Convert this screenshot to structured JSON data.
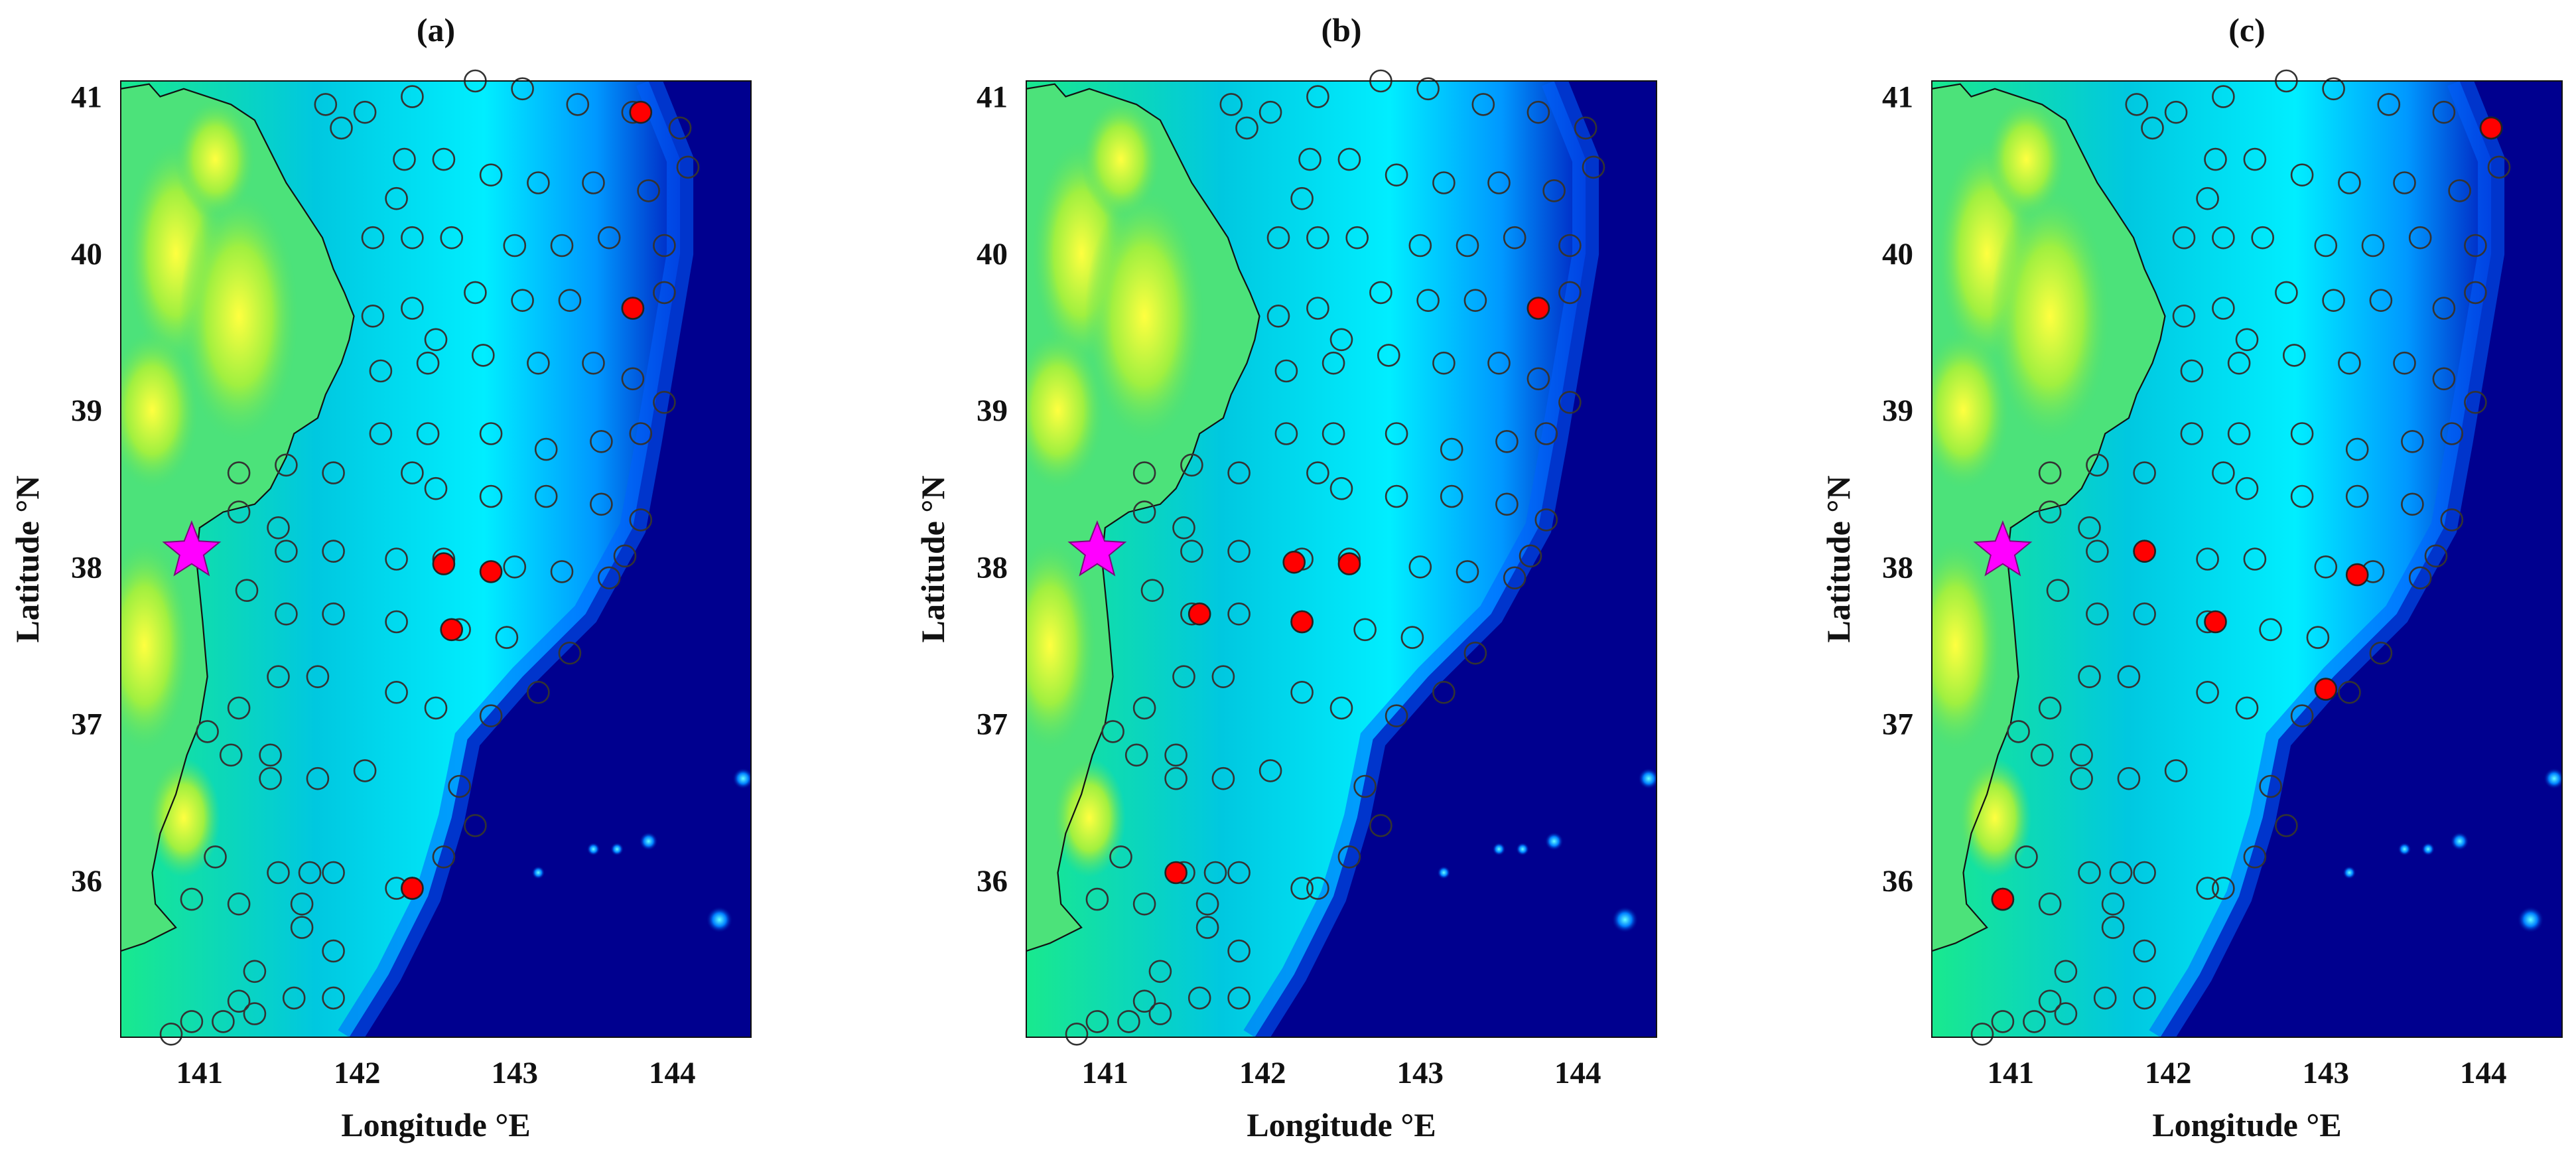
{
  "figure": {
    "xlabel": "Longitude °E",
    "ylabel": "Latitude °N",
    "xticks": [
      141,
      142,
      143,
      144
    ],
    "yticks": [
      36,
      37,
      38,
      39,
      40,
      41
    ],
    "xlim": [
      140.5,
      144.5
    ],
    "ylim": [
      35.0,
      41.1
    ],
    "colormap": "jet (bathymetry/topography)",
    "colors": {
      "station_open": "#333333",
      "station_selected": "#ff0000",
      "epicenter": "#ff00ff"
    }
  },
  "epicenter": {
    "lon": 140.95,
    "lat": 38.1,
    "marker": "magenta-star"
  },
  "stations": [
    [
      140.82,
      35.02
    ],
    [
      141.15,
      35.1
    ],
    [
      140.95,
      35.1
    ],
    [
      141.35,
      35.15
    ],
    [
      141.25,
      35.23
    ],
    [
      141.6,
      35.25
    ],
    [
      141.85,
      35.25
    ],
    [
      141.35,
      35.42
    ],
    [
      141.85,
      35.55
    ],
    [
      141.65,
      35.7
    ],
    [
      141.25,
      35.85
    ],
    [
      141.65,
      35.85
    ],
    [
      140.95,
      35.88
    ],
    [
      141.1,
      36.15
    ],
    [
      141.5,
      36.05
    ],
    [
      141.7,
      36.05
    ],
    [
      141.85,
      36.05
    ],
    [
      142.25,
      35.95
    ],
    [
      142.35,
      35.95
    ],
    [
      142.55,
      36.15
    ],
    [
      142.75,
      36.35
    ],
    [
      142.65,
      36.6
    ],
    [
      141.45,
      36.65
    ],
    [
      141.75,
      36.65
    ],
    [
      142.05,
      36.7
    ],
    [
      141.2,
      36.8
    ],
    [
      141.45,
      36.8
    ],
    [
      141.05,
      36.95
    ],
    [
      141.25,
      37.1
    ],
    [
      141.5,
      37.3
    ],
    [
      141.75,
      37.3
    ],
    [
      142.25,
      37.2
    ],
    [
      142.5,
      37.1
    ],
    [
      142.85,
      37.05
    ],
    [
      143.15,
      37.2
    ],
    [
      143.35,
      37.45
    ],
    [
      141.55,
      37.7
    ],
    [
      141.85,
      37.7
    ],
    [
      142.25,
      37.65
    ],
    [
      142.65,
      37.6
    ],
    [
      142.95,
      37.55
    ],
    [
      141.3,
      37.85
    ],
    [
      141.55,
      38.1
    ],
    [
      141.85,
      38.1
    ],
    [
      142.25,
      38.05
    ],
    [
      142.55,
      38.05
    ],
    [
      143.0,
      38.0
    ],
    [
      143.3,
      37.97
    ],
    [
      143.6,
      37.93
    ],
    [
      143.7,
      38.07
    ],
    [
      143.8,
      38.3
    ],
    [
      141.5,
      38.25
    ],
    [
      141.25,
      38.35
    ],
    [
      142.5,
      38.5
    ],
    [
      142.85,
      38.45
    ],
    [
      143.2,
      38.45
    ],
    [
      143.55,
      38.4
    ],
    [
      141.25,
      38.6
    ],
    [
      141.55,
      38.65
    ],
    [
      141.85,
      38.6
    ],
    [
      142.35,
      38.6
    ],
    [
      142.15,
      38.85
    ],
    [
      142.45,
      38.85
    ],
    [
      142.85,
      38.85
    ],
    [
      143.2,
      38.75
    ],
    [
      143.55,
      38.8
    ],
    [
      143.8,
      38.85
    ],
    [
      142.15,
      39.25
    ],
    [
      142.45,
      39.3
    ],
    [
      142.8,
      39.35
    ],
    [
      143.15,
      39.3
    ],
    [
      143.5,
      39.3
    ],
    [
      143.75,
      39.2
    ],
    [
      143.95,
      39.05
    ],
    [
      142.1,
      39.6
    ],
    [
      142.35,
      39.65
    ],
    [
      142.5,
      39.45
    ],
    [
      142.75,
      39.75
    ],
    [
      143.05,
      39.7
    ],
    [
      143.35,
      39.7
    ],
    [
      143.75,
      39.65
    ],
    [
      143.95,
      39.75
    ],
    [
      142.1,
      40.1
    ],
    [
      142.35,
      40.1
    ],
    [
      142.6,
      40.1
    ],
    [
      143.0,
      40.05
    ],
    [
      143.3,
      40.05
    ],
    [
      143.6,
      40.1
    ],
    [
      143.95,
      40.05
    ],
    [
      142.25,
      40.35
    ],
    [
      142.3,
      40.6
    ],
    [
      142.55,
      40.6
    ],
    [
      142.85,
      40.5
    ],
    [
      143.15,
      40.45
    ],
    [
      143.5,
      40.45
    ],
    [
      143.85,
      40.4
    ],
    [
      144.1,
      40.55
    ],
    [
      141.9,
      40.8
    ],
    [
      142.05,
      40.9
    ],
    [
      141.8,
      40.95
    ],
    [
      142.35,
      41.0
    ],
    [
      142.75,
      41.1
    ],
    [
      143.05,
      41.05
    ],
    [
      143.4,
      40.95
    ],
    [
      143.75,
      40.9
    ],
    [
      144.05,
      40.8
    ]
  ],
  "panels": [
    {
      "id": "a",
      "title": "(a)",
      "selected": [
        [
          142.55,
          38.02
        ],
        [
          142.85,
          37.97
        ],
        [
          142.6,
          37.6
        ],
        [
          142.35,
          35.95
        ],
        [
          143.75,
          39.65
        ],
        [
          143.8,
          40.9
        ]
      ]
    },
    {
      "id": "b",
      "title": "(b)",
      "selected": [
        [
          142.2,
          38.03
        ],
        [
          142.55,
          38.02
        ],
        [
          141.6,
          37.7
        ],
        [
          142.25,
          37.65
        ],
        [
          141.45,
          36.05
        ],
        [
          143.75,
          39.65
        ]
      ]
    },
    {
      "id": "c",
      "title": "(c)",
      "selected": [
        [
          141.85,
          38.1
        ],
        [
          142.3,
          37.65
        ],
        [
          143.2,
          37.95
        ],
        [
          143.0,
          37.22
        ],
        [
          140.95,
          35.88
        ],
        [
          144.05,
          40.8
        ]
      ]
    }
  ]
}
